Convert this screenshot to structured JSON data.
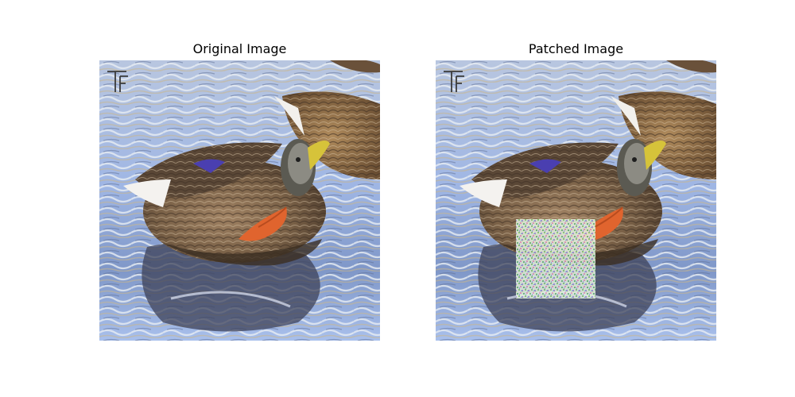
{
  "figure": {
    "panels": [
      {
        "title": "Original Image",
        "has_patch": false
      },
      {
        "title": "Patched Image",
        "has_patch": true
      }
    ],
    "scene": {
      "subject": "mallard duck on water",
      "watermark": "TF"
    },
    "colors": {
      "water_light": "#a9bfe6",
      "water_dark": "#3a3f55",
      "duck_brown": "#7b6248",
      "duck_feet": "#e0642e",
      "speculum": "#4a3fb0",
      "patch_tint": "#dfeee0"
    }
  }
}
